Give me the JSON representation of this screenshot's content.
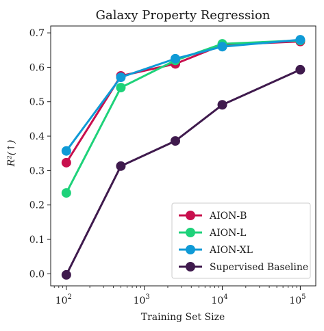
{
  "chart_data": {
    "type": "line",
    "title": "Galaxy Property Regression",
    "xlabel": "Training Set Size",
    "ylabel": "R²(↑)",
    "x_scale": "log",
    "x": [
      100,
      500,
      2500,
      10000,
      100000
    ],
    "xlim": [
      63,
      158000
    ],
    "x_ticks": [
      {
        "value": 100,
        "base": "10",
        "exp": "2"
      },
      {
        "value": 1000,
        "base": "10",
        "exp": "3"
      },
      {
        "value": 10000,
        "base": "10",
        "exp": "4"
      },
      {
        "value": 100000,
        "base": "10",
        "exp": "5"
      }
    ],
    "ylim": [
      -0.035,
      0.72
    ],
    "y_ticks": [
      "0.0",
      "0.1",
      "0.2",
      "0.3",
      "0.4",
      "0.5",
      "0.6",
      "0.7"
    ],
    "grid": false,
    "legend_position": "bottom-right",
    "series": [
      {
        "name": "AION-B",
        "color": "#c8104e",
        "values": [
          0.323,
          0.575,
          0.61,
          0.665,
          0.675
        ]
      },
      {
        "name": "AION-L",
        "color": "#1ed27a",
        "values": [
          0.235,
          0.541,
          0.62,
          0.668,
          0.678
        ]
      },
      {
        "name": "AION-XL",
        "color": "#0f9ad6",
        "values": [
          0.357,
          0.571,
          0.625,
          0.66,
          0.68
        ]
      },
      {
        "name": "Supervised Baseline",
        "color": "#3f1a4d",
        "values": [
          -0.003,
          0.313,
          0.386,
          0.491,
          0.593
        ]
      }
    ]
  }
}
